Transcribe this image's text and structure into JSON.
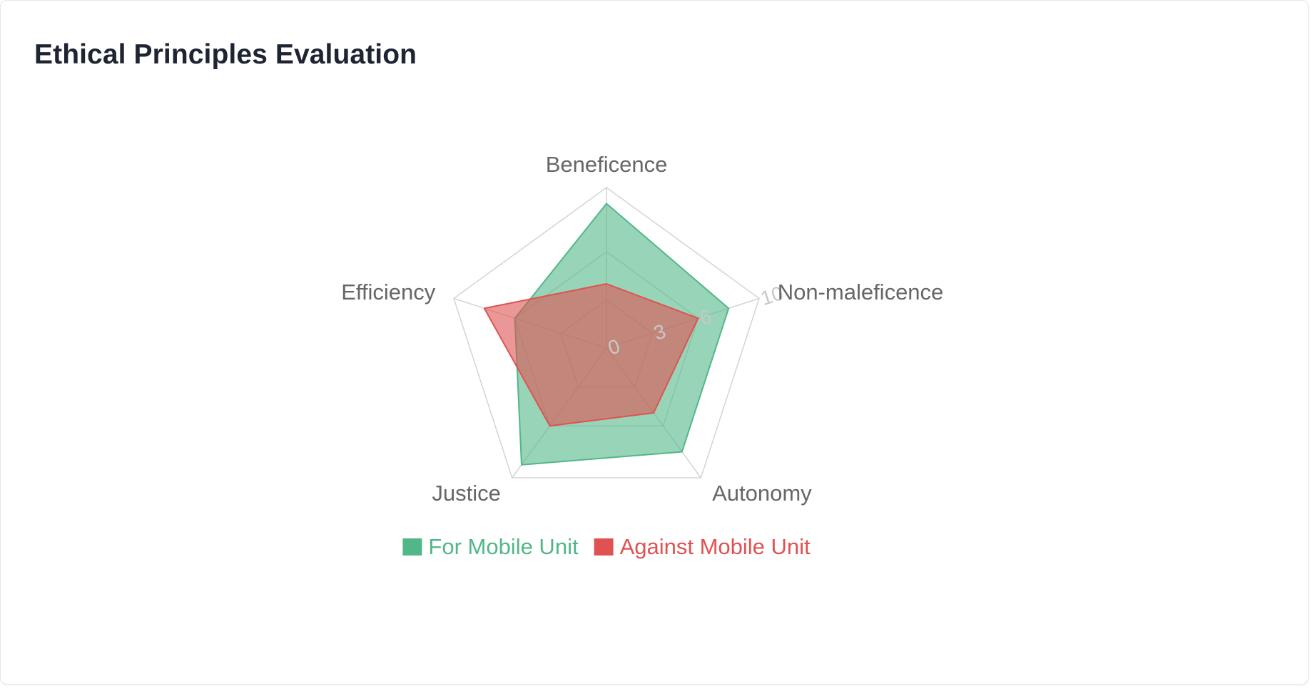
{
  "card": {
    "title": "Ethical Principles Evaluation"
  },
  "chart_data": {
    "type": "radar",
    "title": "Ethical Principles Evaluation",
    "axes": [
      "Beneficence",
      "Non-maleficence",
      "Autonomy",
      "Justice",
      "Efficiency"
    ],
    "range": [
      0,
      10
    ],
    "ticks": [
      0,
      3,
      6,
      10
    ],
    "grid": true,
    "legend_position": "bottom",
    "series": [
      {
        "name": "For Mobile Unit",
        "values": [
          9,
          8,
          8,
          9,
          6
        ],
        "color": "#52b788",
        "fill": "rgba(82,183,136,0.6)"
      },
      {
        "name": "Against Mobile Unit",
        "values": [
          4,
          6,
          5,
          6,
          8
        ],
        "color": "#e05252",
        "fill": "rgba(224,82,82,0.6)"
      }
    ]
  }
}
